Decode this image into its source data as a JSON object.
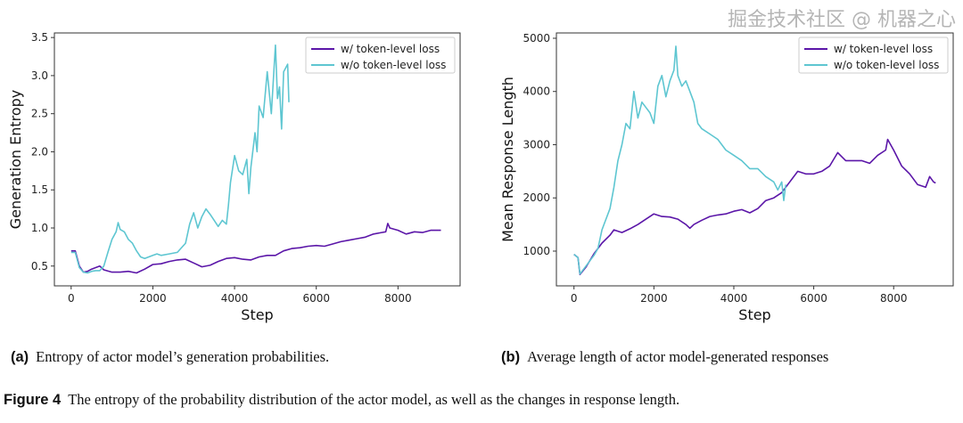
{
  "chart_data": [
    {
      "type": "line",
      "xlabel": "Step",
      "ylabel": "Generation Entropy",
      "xlim": [
        -410,
        9520
      ],
      "ylim": [
        0.24,
        3.56
      ],
      "xticks": [
        0,
        2000,
        4000,
        6000,
        8000
      ],
      "yticks": [
        0.5,
        1.0,
        1.5,
        2.0,
        2.5,
        3.0,
        3.5
      ],
      "ytick_labels": [
        "0.5",
        "1.0",
        "1.5",
        "2.0",
        "2.5",
        "3.0",
        "3.5"
      ],
      "grid": false,
      "legend_position": "top-right",
      "series": [
        {
          "name": "w/ token-level loss",
          "color": "#5b16a8",
          "x": [
            0,
            100,
            200,
            300,
            400,
            500,
            600,
            700,
            800,
            1000,
            1200,
            1400,
            1600,
            1800,
            2000,
            2200,
            2400,
            2600,
            2800,
            3000,
            3200,
            3400,
            3600,
            3800,
            4000,
            4200,
            4400,
            4600,
            4800,
            5000,
            5200,
            5400,
            5600,
            5800,
            6000,
            6200,
            6400,
            6600,
            6800,
            7000,
            7200,
            7400,
            7600,
            7700,
            7750,
            7800,
            8000,
            8200,
            8400,
            8600,
            8800,
            9000,
            9050
          ],
          "y": [
            0.7,
            0.7,
            0.5,
            0.42,
            0.43,
            0.46,
            0.48,
            0.5,
            0.45,
            0.42,
            0.42,
            0.43,
            0.41,
            0.46,
            0.52,
            0.53,
            0.56,
            0.58,
            0.59,
            0.54,
            0.49,
            0.51,
            0.56,
            0.6,
            0.61,
            0.59,
            0.58,
            0.62,
            0.64,
            0.64,
            0.7,
            0.73,
            0.74,
            0.76,
            0.77,
            0.76,
            0.79,
            0.82,
            0.84,
            0.86,
            0.88,
            0.92,
            0.94,
            0.95,
            1.06,
            1.0,
            0.97,
            0.92,
            0.95,
            0.94,
            0.97,
            0.97,
            0.97
          ]
        },
        {
          "name": "w/o token-level loss",
          "color": "#5ec6d1",
          "x": [
            0,
            100,
            200,
            300,
            400,
            500,
            600,
            700,
            800,
            900,
            1000,
            1100,
            1150,
            1200,
            1300,
            1400,
            1500,
            1600,
            1700,
            1800,
            1900,
            2000,
            2100,
            2200,
            2400,
            2600,
            2800,
            2900,
            3000,
            3100,
            3200,
            3300,
            3400,
            3500,
            3600,
            3700,
            3800,
            3850,
            3900,
            4000,
            4100,
            4200,
            4300,
            4350,
            4400,
            4500,
            4550,
            4600,
            4700,
            4800,
            4900,
            5000,
            5050,
            5100,
            5150,
            5200,
            5300,
            5330
          ],
          "y": [
            0.68,
            0.68,
            0.48,
            0.42,
            0.41,
            0.43,
            0.44,
            0.44,
            0.5,
            0.68,
            0.85,
            0.95,
            1.07,
            0.98,
            0.95,
            0.85,
            0.8,
            0.7,
            0.62,
            0.6,
            0.62,
            0.64,
            0.66,
            0.64,
            0.66,
            0.68,
            0.8,
            1.05,
            1.2,
            1.0,
            1.15,
            1.25,
            1.18,
            1.1,
            1.02,
            1.1,
            1.05,
            1.3,
            1.6,
            1.95,
            1.75,
            1.7,
            1.9,
            1.45,
            1.8,
            2.25,
            2.0,
            2.6,
            2.45,
            3.05,
            2.5,
            3.4,
            2.7,
            2.85,
            2.3,
            3.05,
            3.15,
            2.65
          ]
        }
      ]
    },
    {
      "type": "line",
      "xlabel": "Step",
      "ylabel": "Mean Response Length",
      "xlim": [
        -440,
        9490
      ],
      "ylim": [
        347,
        5100
      ],
      "xticks": [
        0,
        2000,
        4000,
        6000,
        8000
      ],
      "yticks": [
        1000,
        2000,
        3000,
        4000,
        5000
      ],
      "ytick_labels": [
        "1000",
        "2000",
        "3000",
        "4000",
        "5000"
      ],
      "grid": false,
      "legend_position": "top-right",
      "series": [
        {
          "name": "w/ token-level loss",
          "color": "#5b16a8",
          "x": [
            0,
            100,
            150,
            300,
            500,
            700,
            900,
            1000,
            1200,
            1400,
            1600,
            1800,
            2000,
            2200,
            2400,
            2600,
            2800,
            2900,
            3000,
            3200,
            3400,
            3600,
            3800,
            4000,
            4200,
            4400,
            4600,
            4800,
            5000,
            5200,
            5400,
            5600,
            5800,
            6000,
            6200,
            6400,
            6600,
            6800,
            7000,
            7200,
            7400,
            7600,
            7800,
            7850,
            8000,
            8200,
            8400,
            8600,
            8800,
            8900,
            9000,
            9050
          ],
          "y": [
            940,
            880,
            560,
            700,
            950,
            1150,
            1300,
            1400,
            1350,
            1420,
            1500,
            1600,
            1700,
            1650,
            1640,
            1600,
            1500,
            1430,
            1500,
            1580,
            1650,
            1680,
            1700,
            1750,
            1780,
            1720,
            1800,
            1950,
            2000,
            2100,
            2300,
            2500,
            2450,
            2450,
            2500,
            2600,
            2850,
            2700,
            2700,
            2700,
            2650,
            2800,
            2900,
            3100,
            2900,
            2600,
            2450,
            2250,
            2200,
            2400,
            2300,
            2280
          ]
        },
        {
          "name": "w/o token-level loss",
          "color": "#5ec6d1",
          "x": [
            0,
            100,
            150,
            300,
            500,
            600,
            700,
            800,
            900,
            1000,
            1100,
            1200,
            1300,
            1400,
            1500,
            1600,
            1700,
            1800,
            1900,
            2000,
            2100,
            2200,
            2300,
            2400,
            2500,
            2550,
            2600,
            2700,
            2800,
            2900,
            3000,
            3100,
            3200,
            3400,
            3600,
            3800,
            4000,
            4200,
            4400,
            4600,
            4800,
            5000,
            5100,
            5200,
            5250,
            5300
          ],
          "y": [
            940,
            880,
            570,
            720,
            920,
            1050,
            1400,
            1600,
            1800,
            2200,
            2700,
            3000,
            3400,
            3300,
            4000,
            3500,
            3800,
            3700,
            3600,
            3400,
            4100,
            4300,
            3900,
            4200,
            4400,
            4850,
            4300,
            4100,
            4200,
            4000,
            3800,
            3400,
            3300,
            3200,
            3100,
            2900,
            2800,
            2700,
            2550,
            2550,
            2400,
            2300,
            2150,
            2300,
            1950,
            2250
          ]
        }
      ]
    }
  ],
  "captions": {
    "a_label": "(a)",
    "a_text": "Entropy of actor model’s generation probabilities.",
    "b_label": "(b)",
    "b_text": "Average length of actor model-generated responses",
    "figure_label": "Figure 4",
    "figure_text": "The entropy of the probability distribution of the actor model, as well as the changes in response length."
  },
  "watermark": "掘金技术社区 @ 机器之心"
}
